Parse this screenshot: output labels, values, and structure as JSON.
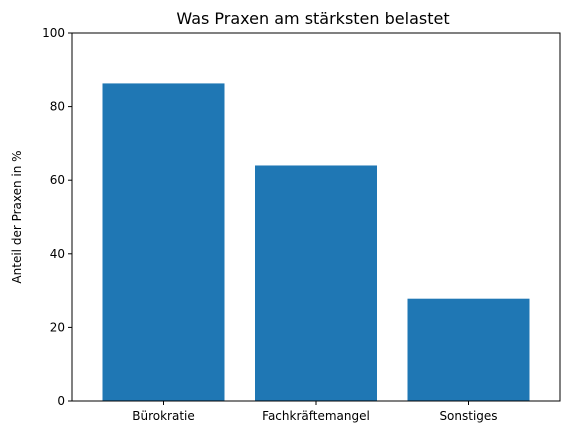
{
  "chart_data": {
    "type": "bar",
    "title": "Was Praxen am stärksten belastet",
    "xlabel": "",
    "ylabel": "Anteil der Praxen in %",
    "categories": [
      "Bürokratie",
      "Fachkräftemangel",
      "Sonstiges"
    ],
    "values": [
      86.3,
      64.0,
      27.8
    ],
    "ylim": [
      0,
      100
    ],
    "yticks": [
      "0",
      "20",
      "40",
      "60",
      "80",
      "100"
    ],
    "grid": false,
    "bar_color": "#1f77b4"
  }
}
